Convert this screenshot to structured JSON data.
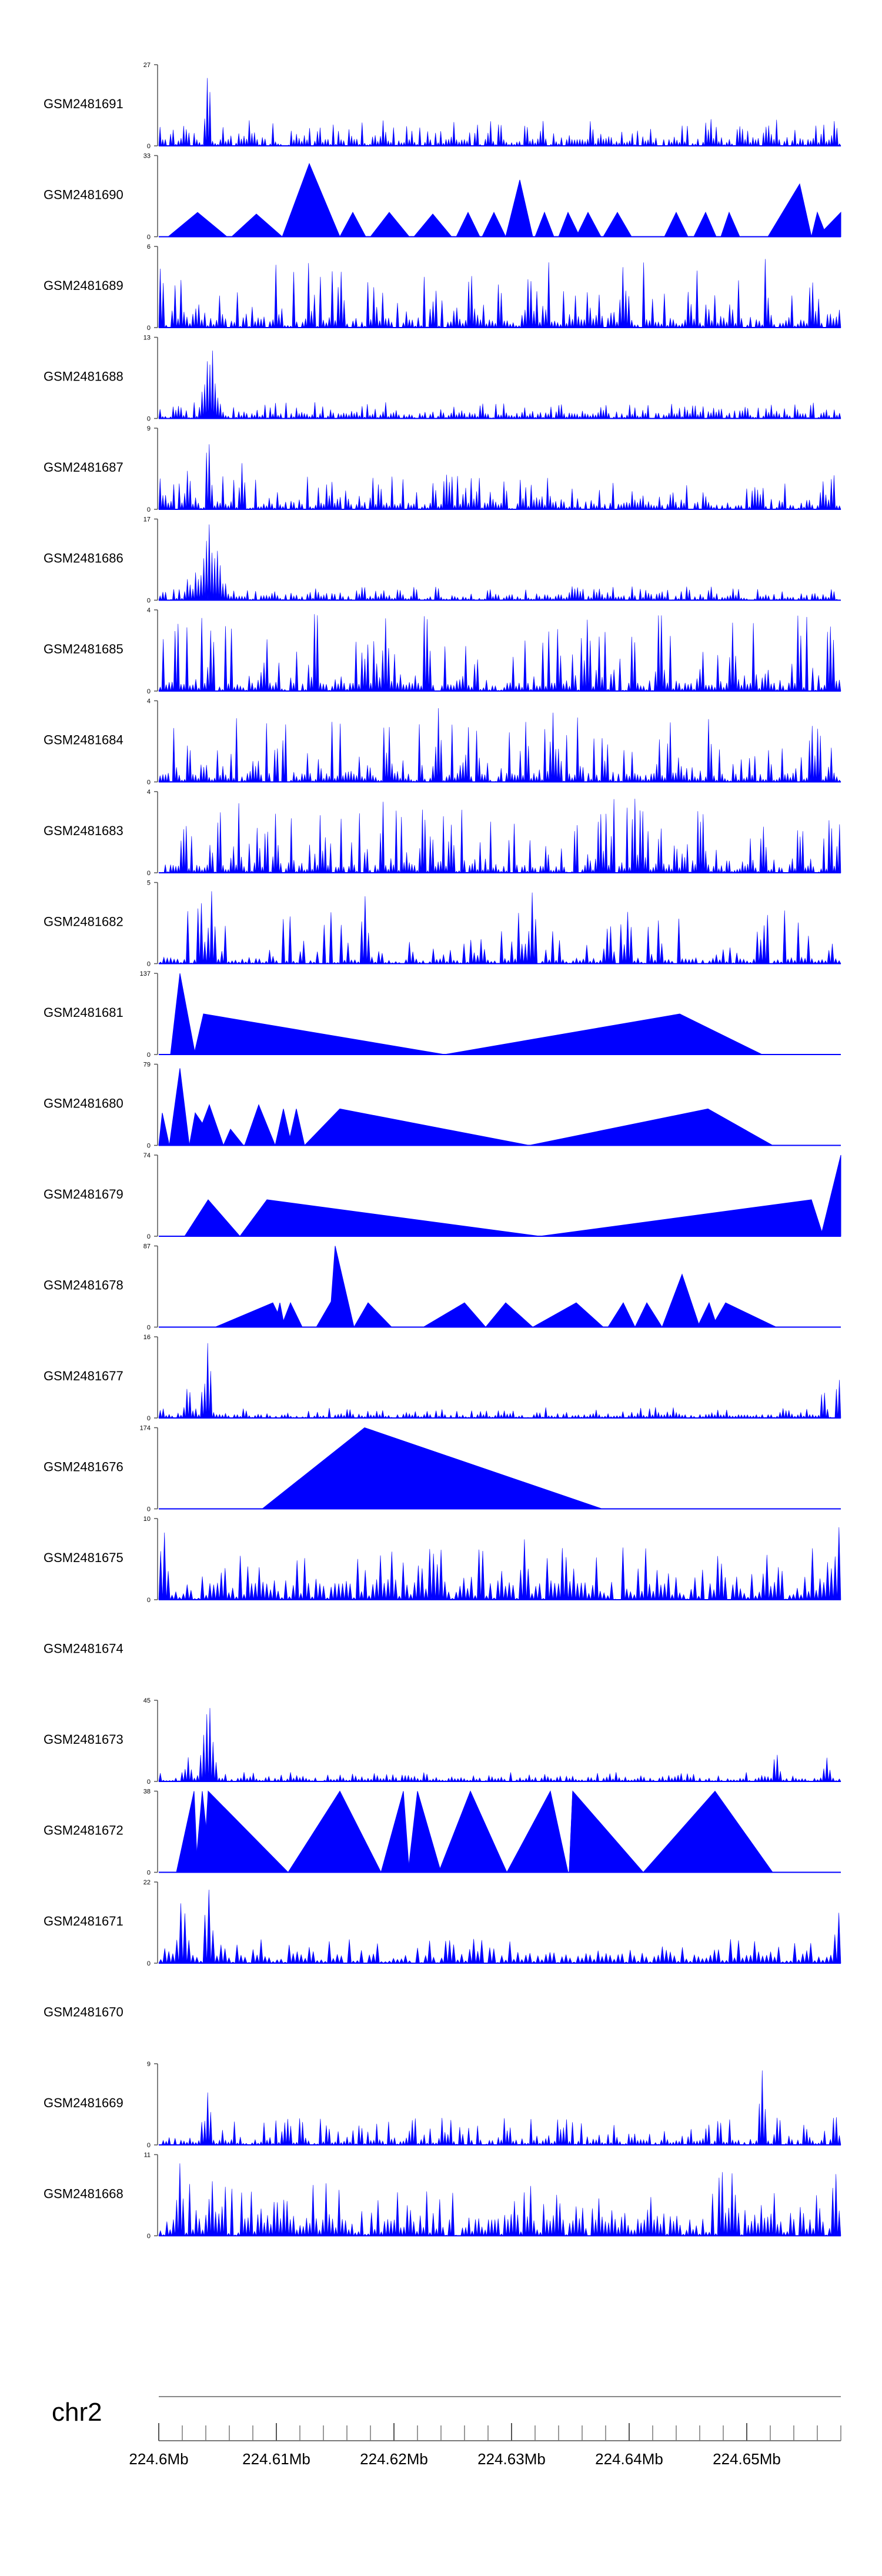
{
  "chart_data": {
    "type": "area",
    "chromosome": "chr2",
    "x_range_mb": [
      224.6,
      224.658
    ],
    "axis": {
      "ticks_mb": [
        224.6,
        224.61,
        224.62,
        224.63,
        224.64,
        224.65
      ],
      "tick_labels": [
        "224.6Mb",
        "224.61Mb",
        "224.62Mb",
        "224.63Mb",
        "224.64Mb",
        "224.65Mb"
      ],
      "minor_tick_step_mb": 0.002
    },
    "color": "#0000ff",
    "tracks": [
      {
        "name": "GSM2481691",
        "ymax": "27",
        "ymin": "0",
        "mode": "noise",
        "density": 260,
        "base": 0.08,
        "amp": 0.25,
        "spikes": [
          [
            224.6022,
            0.3
          ],
          [
            224.6042,
            1.0
          ],
          [
            224.6117,
            0.15
          ],
          [
            224.6495,
            0.3
          ],
          [
            224.6575,
            0.35
          ]
        ]
      },
      {
        "name": "GSM2481690",
        "ymax": "33",
        "ymin": "0",
        "mode": "tri",
        "peaks": [
          [
            224.6008,
            224.6033,
            224.6058,
            0.3
          ],
          [
            224.6062,
            224.6083,
            224.6105,
            0.28
          ],
          [
            224.6105,
            224.6128,
            224.6154,
            0.9
          ],
          [
            224.6154,
            224.6165,
            224.6176,
            0.3
          ],
          [
            224.618,
            224.6196,
            224.6213,
            0.3
          ],
          [
            224.6217,
            224.6233,
            224.6249,
            0.28
          ],
          [
            224.6253,
            224.6263,
            224.6273,
            0.3
          ],
          [
            224.6275,
            224.6285,
            224.6295,
            0.3
          ],
          [
            224.6295,
            224.6307,
            224.6318,
            0.7
          ],
          [
            224.632,
            224.6328,
            224.6336,
            0.3
          ],
          [
            224.634,
            224.6348,
            224.6358,
            0.3
          ],
          [
            224.6355,
            224.6365,
            224.6376,
            0.3
          ],
          [
            224.6378,
            224.639,
            224.6402,
            0.3
          ],
          [
            224.643,
            224.644,
            224.645,
            0.3
          ],
          [
            224.6455,
            224.6465,
            224.6474,
            0.3
          ],
          [
            224.6478,
            224.6485,
            224.6494,
            0.3
          ],
          [
            224.6518,
            224.6545,
            224.6555,
            0.65
          ],
          [
            224.6555,
            224.656,
            224.6568,
            0.3
          ],
          [
            224.656,
            224.658,
            224.658,
            0.3
          ]
        ]
      },
      {
        "name": "GSM2481689",
        "ymax": "6",
        "ymin": "0",
        "mode": "noise",
        "density": 230,
        "base": 0.1,
        "amp": 0.75,
        "spikes": [
          [
            224.6002,
            0.85
          ],
          [
            224.6155,
            0.7
          ],
          [
            224.6265,
            0.8
          ],
          [
            224.6315,
            0.75
          ],
          [
            224.6395,
            0.8
          ],
          [
            224.6555,
            0.7
          ]
        ]
      },
      {
        "name": "GSM2481688",
        "ymax": "13",
        "ymin": "0",
        "mode": "noise",
        "density": 260,
        "base": 0.06,
        "amp": 0.14,
        "spikes": [
          [
            224.6038,
            0.45
          ],
          [
            224.6041,
            0.75
          ],
          [
            224.6043,
            0.65
          ],
          [
            224.6045,
            1.0
          ],
          [
            224.6047,
            0.55
          ],
          [
            224.6049,
            0.35
          ],
          [
            224.6052,
            0.2
          ]
        ]
      },
      {
        "name": "GSM2481687",
        "ymax": "9",
        "ymin": "0",
        "mode": "noise",
        "density": 250,
        "base": 0.08,
        "amp": 0.35,
        "spikes": [
          [
            224.6025,
            0.55
          ],
          [
            224.6042,
            1.0
          ],
          [
            224.6071,
            0.6
          ],
          [
            224.6245,
            0.45
          ],
          [
            224.6565,
            0.35
          ]
        ]
      },
      {
        "name": "GSM2481686",
        "ymax": "17",
        "ymin": "0",
        "mode": "noise",
        "density": 250,
        "base": 0.05,
        "amp": 0.12,
        "spikes": [
          [
            224.6025,
            0.3
          ],
          [
            224.6032,
            0.4
          ],
          [
            224.6038,
            0.55
          ],
          [
            224.6041,
            0.8
          ],
          [
            224.6043,
            0.95
          ],
          [
            224.6046,
            0.7
          ],
          [
            224.6049,
            0.75
          ],
          [
            224.6052,
            0.45
          ],
          [
            224.6056,
            0.25
          ]
        ]
      },
      {
        "name": "GSM2481685",
        "ymax": "4",
        "ymin": "0",
        "mode": "noise",
        "density": 230,
        "base": 0.1,
        "amp": 0.85,
        "spikes": [
          [
            224.6045,
            0.9
          ],
          [
            224.6365,
            1.0
          ],
          [
            224.6488,
            0.85
          ],
          [
            224.6572,
            0.95
          ]
        ]
      },
      {
        "name": "GSM2481684",
        "ymax": "4",
        "ymin": "0",
        "mode": "noise",
        "density": 250,
        "base": 0.1,
        "amp": 0.7,
        "spikes": [
          [
            224.6238,
            0.95
          ],
          [
            224.6335,
            0.9
          ],
          [
            224.6555,
            0.8
          ]
        ]
      },
      {
        "name": "GSM2481683",
        "ymax": "4",
        "ymin": "0",
        "mode": "noise",
        "density": 260,
        "base": 0.1,
        "amp": 0.85,
        "spikes": [
          [
            224.6225,
            0.95
          ],
          [
            224.6375,
            0.9
          ],
          [
            224.6462,
            0.9
          ]
        ]
      },
      {
        "name": "GSM2481682",
        "ymax": "5",
        "ymin": "0",
        "mode": "noise",
        "density": 200,
        "base": 0.06,
        "amp": 0.6,
        "spikes": [
          [
            224.6035,
            0.95
          ],
          [
            224.6045,
            0.9
          ],
          [
            224.6175,
            0.9
          ],
          [
            224.6318,
            0.95
          ]
        ]
      },
      {
        "name": "GSM2481681",
        "ymax": "137",
        "ymin": "0",
        "mode": "tri",
        "peaks": [
          [
            224.601,
            224.6018,
            224.6031,
            1.0
          ],
          [
            224.603,
            224.6038,
            224.6243,
            0.5
          ],
          [
            224.6243,
            224.6443,
            224.6513,
            0.5
          ]
        ]
      },
      {
        "name": "GSM2481680",
        "ymax": "79",
        "ymin": "0",
        "mode": "tri",
        "peaks": [
          [
            224.6,
            224.6003,
            224.6009,
            0.4
          ],
          [
            224.6009,
            224.6018,
            224.6026,
            0.95
          ],
          [
            224.6026,
            224.6031,
            224.605,
            0.4
          ],
          [
            224.603,
            224.6043,
            224.6055,
            0.5
          ],
          [
            224.6055,
            224.6061,
            224.6072,
            0.2
          ],
          [
            224.6073,
            224.6085,
            224.6099,
            0.5
          ],
          [
            224.6099,
            224.6106,
            224.6113,
            0.45
          ],
          [
            224.611,
            224.6117,
            224.6124,
            0.45
          ],
          [
            224.6124,
            224.6154,
            224.6315,
            0.45
          ],
          [
            224.6315,
            224.6467,
            224.6522,
            0.45
          ]
        ]
      },
      {
        "name": "GSM2481679",
        "ymax": "74",
        "ymin": "0",
        "mode": "tri",
        "peaks": [
          [
            224.6022,
            224.6042,
            224.6069,
            0.45
          ],
          [
            224.6069,
            224.6092,
            224.6324,
            0.45
          ],
          [
            224.6324,
            224.6555,
            224.6565,
            0.45
          ],
          [
            224.6563,
            224.658,
            224.658,
            1.0
          ]
        ]
      },
      {
        "name": "GSM2481678",
        "ymax": "87",
        "ymin": "0",
        "mode": "tri",
        "peaks": [
          [
            224.6048,
            224.6097,
            224.6107,
            0.3
          ],
          [
            224.6098,
            224.6103,
            224.6107,
            0.3
          ],
          [
            224.6104,
            224.6112,
            224.6122,
            0.3
          ],
          [
            224.6134,
            224.615,
            224.6165,
            0.4
          ],
          [
            224.6145,
            224.615,
            224.6166,
            1.0
          ],
          [
            224.6166,
            224.6178,
            224.6198,
            0.3
          ],
          [
            224.6225,
            224.626,
            224.6278,
            0.3
          ],
          [
            224.6278,
            224.6295,
            224.6318,
            0.3
          ],
          [
            224.6318,
            224.6355,
            224.6378,
            0.3
          ],
          [
            224.6382,
            224.6395,
            224.6405,
            0.3
          ],
          [
            224.6405,
            224.6415,
            224.6428,
            0.3
          ],
          [
            224.6428,
            224.6445,
            224.646,
            0.65
          ],
          [
            224.6458,
            224.6468,
            224.6475,
            0.3
          ],
          [
            224.647,
            224.6482,
            224.6525,
            0.3
          ]
        ]
      },
      {
        "name": "GSM2481677",
        "ymax": "16",
        "ymin": "0",
        "mode": "noise",
        "density": 230,
        "base": 0.04,
        "amp": 0.1,
        "spikes": [
          [
            224.6025,
            0.45
          ],
          [
            224.6038,
            0.45
          ],
          [
            224.6042,
            1.0
          ],
          [
            224.6565,
            0.4
          ],
          [
            224.6578,
            0.55
          ]
        ]
      },
      {
        "name": "GSM2481676",
        "ymax": "174",
        "ymin": "0",
        "mode": "tri",
        "peaks": [
          [
            224.6088,
            224.6175,
            224.6377,
            1.0
          ]
        ]
      },
      {
        "name": "GSM2481675",
        "ymax": "10",
        "ymin": "0",
        "mode": "noise",
        "density": 180,
        "base": 0.2,
        "amp": 0.45,
        "spikes": [
          [
            224.6004,
            0.95
          ],
          [
            224.6311,
            0.75
          ],
          [
            224.6578,
            0.95
          ]
        ]
      },
      {
        "name": "GSM2481674",
        "ymax": "",
        "ymin": "",
        "mode": "empty"
      },
      {
        "name": "GSM2481673",
        "ymax": "45",
        "ymin": "0",
        "mode": "noise",
        "density": 220,
        "base": 0.04,
        "amp": 0.08,
        "spikes": [
          [
            224.6025,
            0.3
          ],
          [
            224.6038,
            0.6
          ],
          [
            224.6041,
            0.85
          ],
          [
            224.6043,
            1.0
          ],
          [
            224.6046,
            0.5
          ],
          [
            224.6525,
            0.4
          ],
          [
            224.6568,
            0.3
          ]
        ]
      },
      {
        "name": "GSM2481672",
        "ymax": "38",
        "ymin": "0",
        "mode": "tri",
        "peaks": [
          [
            224.6015,
            224.603,
            224.6033,
            1.0
          ],
          [
            224.6031,
            224.6037,
            224.6044,
            1.0
          ],
          [
            224.6038,
            224.6042,
            224.611,
            1.0
          ],
          [
            224.611,
            224.6154,
            224.6189,
            1.0
          ],
          [
            224.6189,
            224.6208,
            224.6213,
            1.0
          ],
          [
            224.6212,
            224.622,
            224.624,
            1.0
          ],
          [
            224.6238,
            224.6265,
            224.6296,
            1.0
          ],
          [
            224.6296,
            224.6333,
            224.6348,
            1.0
          ],
          [
            224.6349,
            224.6352,
            224.6352,
            1.0
          ],
          [
            224.6349,
            224.6352,
            224.6412,
            1.0
          ],
          [
            224.6412,
            224.6473,
            224.6522,
            1.0
          ]
        ]
      },
      {
        "name": "GSM2481671",
        "ymax": "22",
        "ymin": "0",
        "mode": "noise",
        "density": 170,
        "base": 0.1,
        "amp": 0.2,
        "spikes": [
          [
            224.602,
            0.9
          ],
          [
            224.6042,
            1.0
          ],
          [
            224.6578,
            0.65
          ]
        ]
      },
      {
        "name": "GSM2481670",
        "ymax": "",
        "ymin": "",
        "mode": "empty"
      },
      {
        "name": "GSM2481669",
        "ymax": "9",
        "ymin": "0",
        "mode": "noise",
        "density": 230,
        "base": 0.06,
        "amp": 0.28,
        "spikes": [
          [
            224.6042,
            0.7
          ],
          [
            224.6513,
            0.95
          ],
          [
            224.6575,
            0.45
          ]
        ]
      },
      {
        "name": "GSM2481668",
        "ymax": "11",
        "ymin": "0",
        "mode": "noise",
        "density": 210,
        "base": 0.2,
        "amp": 0.45,
        "spikes": [
          [
            224.6018,
            0.9
          ],
          [
            224.6045,
            0.75
          ],
          [
            224.6478,
            1.0
          ],
          [
            224.6488,
            0.85
          ],
          [
            224.6575,
            0.9
          ]
        ]
      }
    ]
  }
}
